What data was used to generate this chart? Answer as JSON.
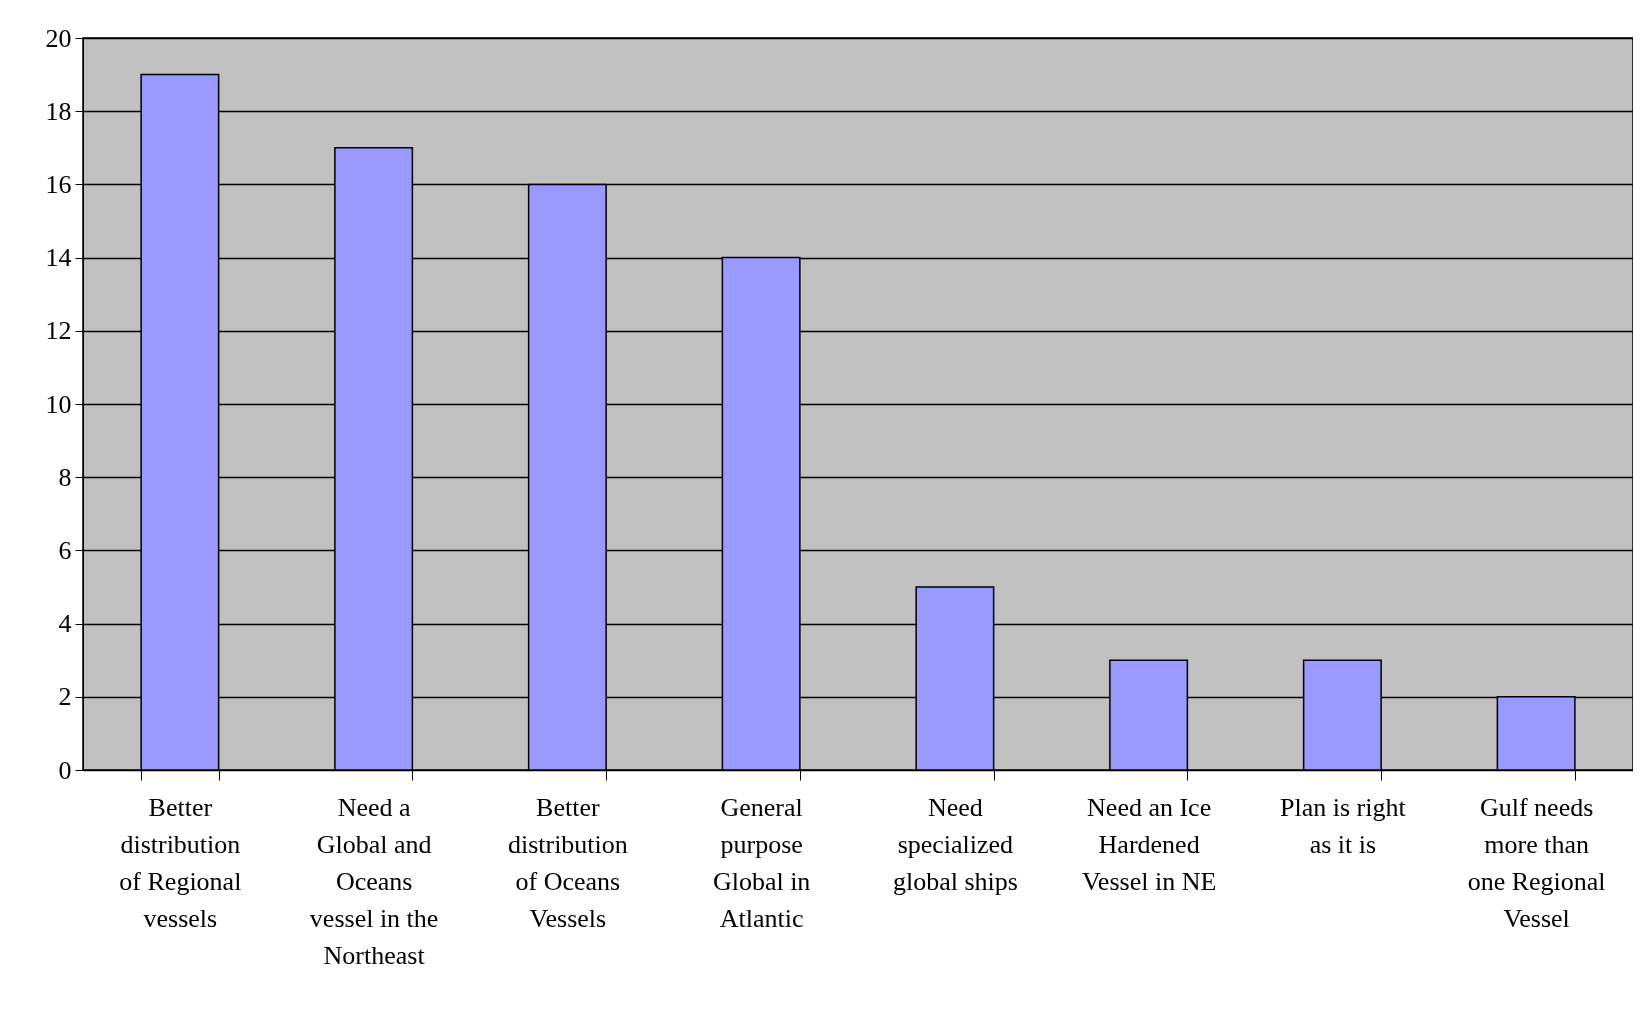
{
  "chart_data": {
    "type": "bar",
    "categories": [
      "Better\ndistribution\nof  Regional\nvessels",
      "Need a\nGlobal and\nOceans\nvessel in the\nNortheast",
      "Better\ndistribution\nof Oceans\nVessels",
      "General\npurpose\nGlobal in\nAtlantic",
      "Need\nspecialized\nglobal ships",
      "Need an Ice\nHardened\nVessel in NE",
      "Plan is right\nas it is",
      "Gulf needs\nmore than\none Regional\nVessel"
    ],
    "values": [
      19,
      17,
      16,
      14,
      5,
      3,
      3,
      2
    ],
    "color": "#9999ff",
    "ylim": [
      0,
      20
    ],
    "yticks": [
      0,
      2,
      4,
      6,
      8,
      10,
      12,
      14,
      16,
      18,
      20
    ],
    "grid": "y"
  }
}
